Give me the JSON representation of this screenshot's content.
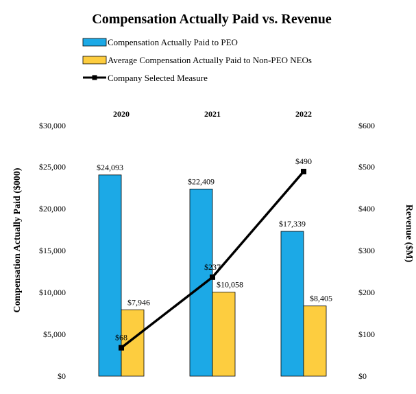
{
  "chart_data": {
    "type": "bar",
    "title": "Compensation Actually Paid vs. Revenue",
    "categories": [
      "2020",
      "2021",
      "2022"
    ],
    "series": [
      {
        "name": "Compensation Actually Paid to PEO",
        "kind": "bar",
        "axis": "left",
        "color": "#1CA9E6",
        "values": [
          24093,
          22409,
          17339
        ],
        "labels": [
          "$24,093",
          "$22,409",
          "$17,339"
        ]
      },
      {
        "name": "Average Compensation Actually Paid to Non-PEO NEOs",
        "kind": "bar",
        "axis": "left",
        "color": "#FDCD3F",
        "values": [
          7946,
          10058,
          8405
        ],
        "labels": [
          "$7,946",
          "$10,058",
          "$8,405"
        ]
      },
      {
        "name": "Company Selected Measure",
        "kind": "line",
        "axis": "right",
        "color": "#000000",
        "values": [
          68,
          237,
          490
        ],
        "labels": [
          "$68",
          "$237",
          "$490"
        ]
      }
    ],
    "ylabel": "Compensation Actually Paid ($000)",
    "y2label": "Revenue ($M)",
    "ylim": [
      0,
      30000
    ],
    "y2lim": [
      0,
      600
    ],
    "yticks": [
      "$0",
      "$5,000",
      "$10,000",
      "$15,000",
      "$20,000",
      "$25,000",
      "$30,000"
    ],
    "y2ticks": [
      "$0",
      "$100",
      "$200",
      "$300",
      "$400",
      "$500",
      "$600"
    ],
    "legend_position": "top-left",
    "grid": false
  }
}
